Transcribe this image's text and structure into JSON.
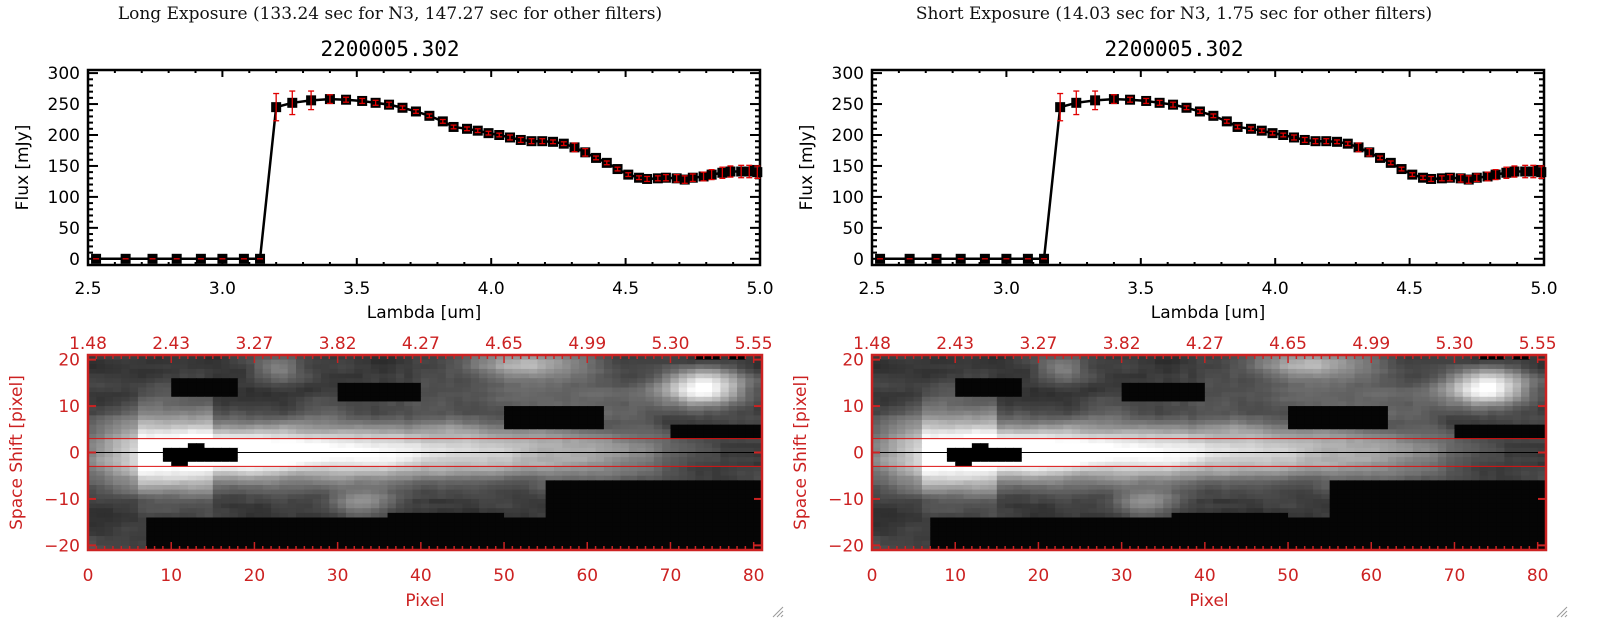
{
  "panels": [
    {
      "id": "long",
      "exposure_title": "Long Exposure (133.24 sec for N3, 147.27 sec for other filters)",
      "object_title": "2200005.302"
    },
    {
      "id": "short",
      "exposure_title": "Short Exposure (14.03 sec for N3, 1.75 sec for other filters)",
      "object_title": "2200005.302"
    }
  ],
  "colors": {
    "axis_black": "#000000",
    "error_bar_red": "#e00000",
    "image_axis_red": "#cc2222",
    "aperture_line_red": "#dd1111"
  },
  "chart_data": [
    {
      "type": "line",
      "title": "2200005.302",
      "xlabel": "Lambda [um]",
      "ylabel": "Flux [mJy]",
      "xlim": [
        2.5,
        5.0
      ],
      "ylim": [
        -10,
        305
      ],
      "xticks": [
        2.5,
        3.0,
        3.5,
        4.0,
        4.5,
        5.0
      ],
      "xtick_labels": [
        "2.5",
        "3.0",
        "3.5",
        "4.0",
        "4.5",
        "5.0"
      ],
      "yticks": [
        0,
        50,
        100,
        150,
        200,
        250,
        300
      ],
      "ytick_labels": [
        "0",
        "50",
        "100",
        "150",
        "200",
        "250",
        "300"
      ],
      "grid": false,
      "series": [
        {
          "name": "spectrum",
          "marker": "square",
          "x": [
            2.53,
            2.64,
            2.74,
            2.83,
            2.92,
            3.0,
            3.08,
            3.14,
            3.2,
            3.26,
            3.33,
            3.4,
            3.46,
            3.52,
            3.57,
            3.62,
            3.67,
            3.72,
            3.77,
            3.82,
            3.86,
            3.91,
            3.95,
            3.99,
            4.03,
            4.07,
            4.11,
            4.15,
            4.19,
            4.23,
            4.27,
            4.31,
            4.35,
            4.39,
            4.43,
            4.47,
            4.51,
            4.55,
            4.58,
            4.62,
            4.65,
            4.69,
            4.72,
            4.75,
            4.79,
            4.82,
            4.86,
            4.89,
            4.93,
            4.96,
            4.99
          ],
          "y": [
            0,
            0,
            0,
            0,
            0,
            0,
            0,
            0,
            245,
            252,
            256,
            258,
            257,
            255,
            252,
            249,
            244,
            238,
            231,
            222,
            213,
            210,
            207,
            203,
            200,
            196,
            192,
            190,
            190,
            189,
            186,
            180,
            172,
            163,
            155,
            145,
            136,
            131,
            129,
            130,
            131,
            130,
            128,
            131,
            133,
            136,
            139,
            141,
            141,
            141,
            140
          ],
          "yerr": [
            0,
            0,
            0,
            0,
            0,
            0,
            0,
            0,
            22,
            19,
            15,
            7,
            4,
            4,
            4,
            4,
            3,
            3,
            3,
            3,
            3,
            3,
            3,
            3,
            3,
            4,
            4,
            4,
            4,
            3,
            3,
            7,
            6,
            3,
            3,
            3,
            3,
            3,
            4,
            4,
            5,
            6,
            6,
            6,
            7,
            8,
            9,
            9,
            10,
            10,
            10
          ]
        }
      ]
    },
    {
      "type": "heatmap",
      "title": "",
      "xlabel": "Pixel",
      "ylabel": "Space Shift [pixel]",
      "xlim": [
        0,
        81
      ],
      "ylim": [
        -21,
        21
      ],
      "xticks": [
        0,
        10,
        20,
        30,
        40,
        50,
        60,
        70,
        80
      ],
      "xtick_labels": [
        "0",
        "10",
        "20",
        "30",
        "40",
        "50",
        "60",
        "70",
        "80"
      ],
      "yticks": [
        -20,
        -10,
        0,
        10,
        20
      ],
      "ytick_labels": [
        "-20",
        "-10",
        "0",
        "10",
        "20"
      ],
      "top_axis_label_values": [
        "1.48",
        "2.43",
        "3.27",
        "3.82",
        "4.27",
        "4.65",
        "4.99",
        "5.30",
        "5.55"
      ],
      "aperture_lines": [
        3,
        -3
      ],
      "center_line": 0,
      "colormap": "grayscale",
      "features": [
        {
          "name": "spectral trace",
          "y_center": 0,
          "x_range": [
            6,
            81
          ],
          "peak_x": 12,
          "width": 5
        },
        {
          "name": "saturated core",
          "x_range": [
            9,
            18
          ],
          "y_range": [
            -3,
            2
          ]
        },
        {
          "name": "bright blob upper right",
          "x_center": 74,
          "y_center": 14
        },
        {
          "name": "bright blob upper middle",
          "x_center": 52,
          "y_center": 20
        },
        {
          "name": "faint blob lower",
          "x_center": 33,
          "y_center": -11
        },
        {
          "name": "faint blob upper left",
          "x_center": 23,
          "y_center": 18
        }
      ]
    }
  ]
}
